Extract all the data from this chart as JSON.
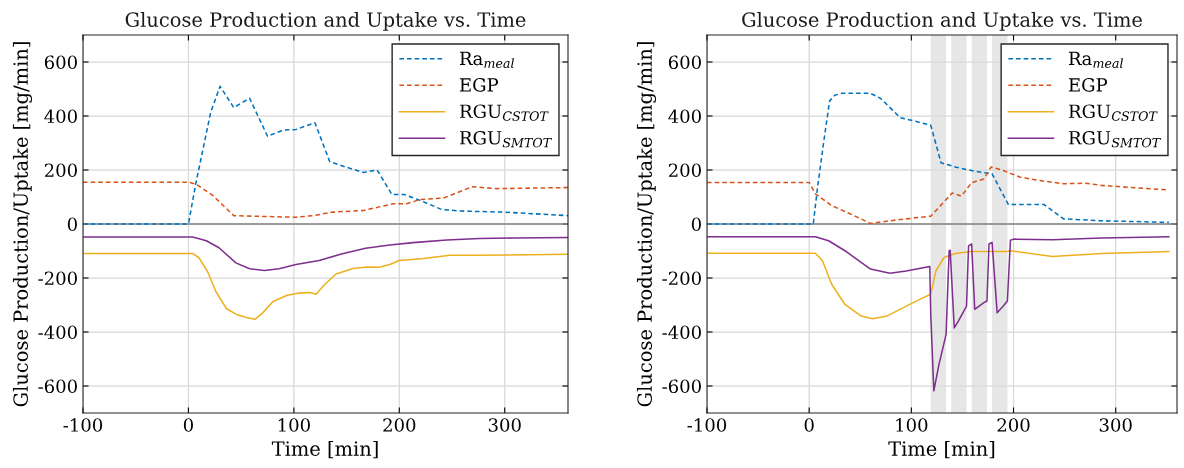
{
  "chart_data": [
    {
      "type": "line",
      "title": "Glucose Production and Uptake vs. Time",
      "xlabel": "Time [min]",
      "ylabel": "Glucose Production/Uptake [mg/min]",
      "xlim": [
        -100,
        360
      ],
      "xticks": [
        -100,
        0,
        100,
        200,
        300
      ],
      "ylim": [
        -700,
        700
      ],
      "yticks": [
        -600,
        -400,
        -200,
        0,
        200,
        400,
        600
      ],
      "grid": true,
      "legend": "top right",
      "ref_lines": [
        {
          "axis": "y",
          "value": 0,
          "color": "#808080",
          "line_style": "solid"
        }
      ],
      "series": [
        {
          "name": "Ra$_{meal}$",
          "color": "#0072bd",
          "line_style": "dashed",
          "x": [
            -100,
            0,
            7,
            21,
            30,
            43,
            58,
            75,
            90,
            102,
            120,
            134,
            150,
            166,
            179,
            193,
            205,
            220,
            240,
            258,
            299,
            360
          ],
          "values": [
            0,
            0,
            150,
            412,
            510,
            431,
            466,
            325,
            348,
            350,
            375,
            231,
            210,
            191,
            200,
            109,
            109,
            87,
            54,
            48,
            44,
            31
          ]
        },
        {
          "name": "EGP",
          "color": "#d95319",
          "line_style": "dashed",
          "x": [
            -100,
            0,
            7,
            23,
            43,
            61,
            102,
            118,
            137,
            166,
            194,
            207,
            220,
            242,
            269,
            293,
            360
          ],
          "values": [
            155,
            155,
            148,
            106,
            31,
            29,
            25,
            31,
            44,
            50,
            75,
            75,
            91,
            96,
            138,
            131,
            135
          ]
        },
        {
          "name": "RGU$_{CSTOT}$",
          "color": "#edb120",
          "line_style": "solid",
          "x": [
            -100,
            4,
            10,
            18,
            26,
            36,
            45,
            55,
            63,
            70,
            80,
            93,
            105,
            115,
            121,
            129,
            140,
            156,
            169,
            181,
            191,
            200,
            223,
            248,
            276,
            360
          ],
          "values": [
            -109,
            -109,
            -125,
            -175,
            -250,
            -313,
            -334,
            -346,
            -353,
            -331,
            -288,
            -265,
            -256,
            -254,
            -260,
            -225,
            -185,
            -165,
            -159,
            -160,
            -150,
            -135,
            -128,
            -116,
            -116,
            -112
          ]
        },
        {
          "name": "RGU$_{SMTOT}$",
          "color": "#7e2f8e",
          "line_style": "solid",
          "x": [
            -100,
            4,
            17,
            29,
            45,
            58,
            72,
            86,
            102,
            124,
            146,
            168,
            191,
            213,
            245,
            276,
            308,
            360
          ],
          "values": [
            -48,
            -48,
            -62,
            -88,
            -144,
            -166,
            -172,
            -166,
            -150,
            -135,
            -110,
            -90,
            -78,
            -69,
            -59,
            -54,
            -52,
            -50
          ]
        }
      ]
    },
    {
      "type": "line",
      "title": "Glucose Production and Uptake vs. Time",
      "xlabel": "Time [min]",
      "ylabel": "Glucose Production/Uptake [mg/min]",
      "xlim": [
        -100,
        360
      ],
      "xticks": [
        -100,
        0,
        100,
        200,
        300
      ],
      "ylim": [
        -700,
        700
      ],
      "yticks": [
        -600,
        -400,
        -200,
        0,
        200,
        400,
        600
      ],
      "grid": true,
      "legend": "top right",
      "ref_lines": [
        {
          "axis": "y",
          "value": 0,
          "color": "#808080",
          "line_style": "solid"
        }
      ],
      "bands": [
        {
          "axis": "x",
          "from": 119,
          "to": 134,
          "color": "#e6e6e6"
        },
        {
          "axis": "x",
          "from": 139,
          "to": 154,
          "color": "#e6e6e6"
        },
        {
          "axis": "x",
          "from": 159,
          "to": 174,
          "color": "#e6e6e6"
        },
        {
          "axis": "x",
          "from": 179,
          "to": 194,
          "color": "#e6e6e6"
        }
      ],
      "series": [
        {
          "name": "Ra$_{meal}$",
          "color": "#0072bd",
          "line_style": "dashed",
          "x": [
            -100,
            4,
            8,
            14,
            20,
            25,
            32,
            60,
            70,
            89,
            102,
            119,
            129,
            143,
            159,
            175,
            179,
            195,
            230,
            249,
            286,
            352
          ],
          "values": [
            0,
            0,
            130,
            298,
            456,
            477,
            484,
            484,
            465,
            394,
            382,
            366,
            227,
            211,
            198,
            188,
            186,
            72,
            72,
            19,
            12,
            6
          ]
        },
        {
          "name": "EGP",
          "color": "#d95319",
          "line_style": "dashed",
          "x": [
            -100,
            0,
            6,
            22,
            44,
            60,
            79,
            95,
            119,
            130,
            140,
            149,
            159,
            171,
            178,
            190,
            206,
            229,
            249,
            270,
            286,
            352
          ],
          "values": [
            154,
            154,
            112,
            68,
            31,
            2,
            12,
            19,
            29,
            74,
            115,
            103,
            153,
            167,
            211,
            198,
            174,
            159,
            149,
            151,
            143,
            126
          ]
        },
        {
          "name": "RGU$_{CSTOT}$",
          "color": "#edb120",
          "line_style": "solid",
          "x": [
            -100,
            6,
            13,
            22,
            35,
            51,
            62,
            76,
            95,
            108,
            119,
            124,
            132,
            143,
            159,
            194,
            197,
            238,
            286,
            352
          ],
          "values": [
            -108,
            -108,
            -136,
            -223,
            -298,
            -341,
            -351,
            -341,
            -304,
            -279,
            -260,
            -174,
            -124,
            -109,
            -102,
            -102,
            -99,
            -120,
            -109,
            -102
          ]
        },
        {
          "name": "RGU$_{SMTOT}$",
          "color": "#7e2f8e",
          "line_style": "solid",
          "x": [
            -100,
            6,
            19,
            35,
            60,
            79,
            95,
            118,
            119,
            122,
            127,
            134,
            137,
            138,
            142,
            146,
            154,
            156,
            159,
            162,
            171,
            174,
            176,
            179,
            184,
            190,
            194,
            197,
            200,
            238,
            286,
            352
          ],
          "values": [
            -47,
            -47,
            -62,
            -99,
            -167,
            -182,
            -174,
            -157,
            -335,
            -618,
            -521,
            -409,
            -99,
            -97,
            -385,
            -360,
            -304,
            -81,
            -74,
            -316,
            -291,
            -285,
            -74,
            -68,
            -329,
            -304,
            -285,
            -60,
            -56,
            -58,
            -52,
            -47
          ]
        }
      ]
    }
  ]
}
